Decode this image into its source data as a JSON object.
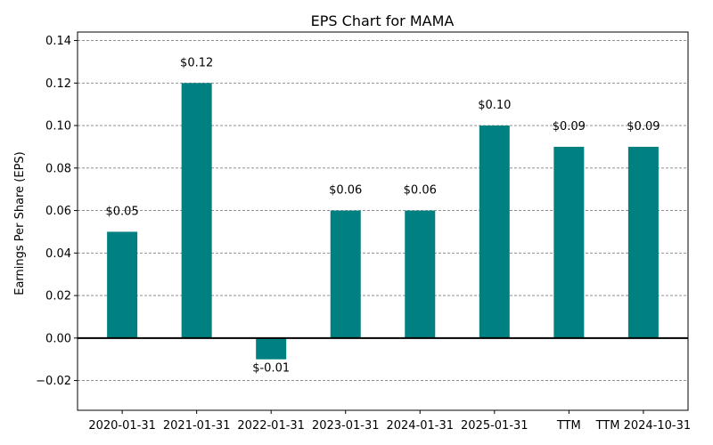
{
  "chart_data": {
    "type": "bar",
    "title": "EPS Chart for MAMA",
    "xlabel": "",
    "ylabel": "Earnings Per Share (EPS)",
    "categories": [
      "2020-01-31",
      "2021-01-31",
      "2022-01-31",
      "2023-01-31",
      "2024-01-31",
      "2025-01-31",
      "TTM",
      "TTM 2024-10-31"
    ],
    "values": [
      0.05,
      0.12,
      -0.01,
      0.06,
      0.06,
      0.1,
      0.09,
      0.09
    ],
    "data_labels": [
      "$0.05",
      "$0.12",
      "$-0.01",
      "$0.06",
      "$0.06",
      "$0.10",
      "$0.09",
      "$0.09"
    ],
    "ylim": [
      -0.034,
      0.144
    ],
    "yticks": [
      -0.02,
      0.0,
      0.02,
      0.04,
      0.06,
      0.08,
      0.1,
      0.12,
      0.14
    ],
    "ytick_labels": [
      "−0.02",
      "0.00",
      "0.02",
      "0.04",
      "0.06",
      "0.08",
      "0.10",
      "0.12",
      "0.14"
    ],
    "grid": "horizontal-dashed",
    "zero_line": true,
    "colors": {
      "bar": "#008080",
      "grid": "#808080",
      "axis": "#000000"
    }
  }
}
